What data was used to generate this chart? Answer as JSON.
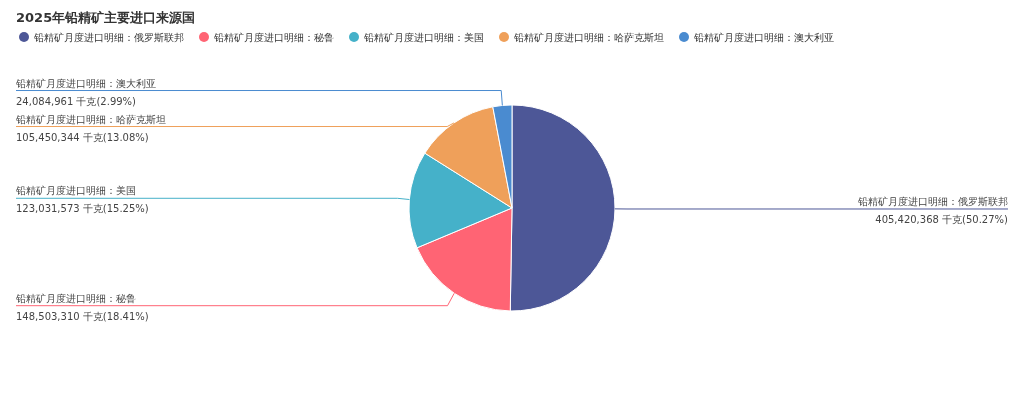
{
  "chart_data": {
    "type": "pie",
    "title": "2025年铅精矿主要进口来源国",
    "categories": [
      "铅精矿月度进口明细：俄罗斯联邦",
      "铅精矿月度进口明细：秘鲁",
      "铅精矿月度进口明细：美国",
      "铅精矿月度进口明细：哈萨克斯坦",
      "铅精矿月度进口明细：澳大利亚"
    ],
    "values": [
      405420368,
      148503310,
      123031573,
      105450344,
      24084961
    ],
    "colors": [
      "#4d5797",
      "#ff6474",
      "#45b1c9",
      "#efa05a",
      "#4a8bd0"
    ],
    "value_labels": [
      "405,420,368 千克(50.27%)",
      "148,503,310 千克(18.41%)",
      "123,031,573 千克(15.25%)",
      "105,450,344 千克(13.08%)",
      "24,084,961 千克(2.99%)"
    ],
    "legend": "top left"
  }
}
